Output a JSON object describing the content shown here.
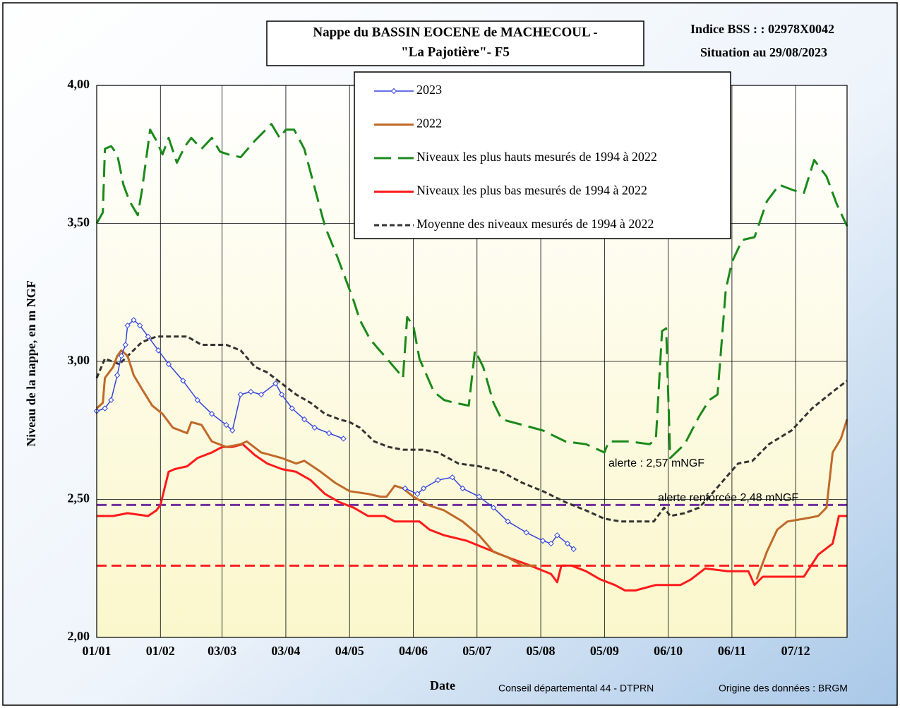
{
  "chart_data": {
    "type": "line",
    "title": [
      "Nappe du BASSIN EOCENE de MACHECOUL  -",
      "\"La Pajotière\"- F5"
    ],
    "info": [
      "Indice BSS : : 02978X0042",
      "Situation au 29/08/2023"
    ],
    "ylabel": "Niveau de la nappe, en m NGF",
    "xlabel": "Date",
    "footer": [
      "Conseil départemental 44 - DTPRN",
      "Origine des données : BRGM"
    ],
    "annotations": [
      "alerte : 2,57 mNGF",
      "alerte renforcée 2,48 mNGF"
    ],
    "xlim": [
      0,
      365
    ],
    "xticks": [
      {
        "value": 0,
        "label": "01/01"
      },
      {
        "value": 31,
        "label": "01/02"
      },
      {
        "value": 61,
        "label": "03/03"
      },
      {
        "value": 92,
        "label": "03/04"
      },
      {
        "value": 123,
        "label": "04/05"
      },
      {
        "value": 154,
        "label": "04/06"
      },
      {
        "value": 185,
        "label": "05/07"
      },
      {
        "value": 216,
        "label": "05/08"
      },
      {
        "value": 247,
        "label": "05/09"
      },
      {
        "value": 278,
        "label": "06/10"
      },
      {
        "value": 309,
        "label": "06/11"
      },
      {
        "value": 340,
        "label": "07/12"
      }
    ],
    "ylim": [
      2,
      4
    ],
    "yticks": [
      {
        "value": 2,
        "label": "2,00"
      },
      {
        "value": 2.5,
        "label": "2,50"
      },
      {
        "value": 3,
        "label": "3,00"
      },
      {
        "value": 3.5,
        "label": "3,50"
      },
      {
        "value": 4,
        "label": "4,00"
      }
    ],
    "grid": true,
    "reference_lines": [
      {
        "value": 2.48,
        "color": "#7030a0"
      },
      {
        "value": 2.26,
        "color": "#ff2020"
      }
    ],
    "series": [
      {
        "name": "2023",
        "color": "#3344dd",
        "style": "markers",
        "x": [
          0,
          4,
          7,
          10,
          12,
          14,
          15,
          18,
          21,
          25,
          30,
          35,
          42,
          49,
          56,
          63,
          66,
          70,
          75,
          80,
          87,
          90,
          95,
          101,
          106,
          113,
          120,
          125,
          150,
          156,
          159,
          166,
          173,
          178,
          186,
          193,
          200,
          209,
          217,
          221,
          224,
          229,
          232
        ],
        "values": [
          2.82,
          2.83,
          2.86,
          2.95,
          3.02,
          3.06,
          3.13,
          3.15,
          3.13,
          3.09,
          3.04,
          2.99,
          2.93,
          2.86,
          2.81,
          2.77,
          2.75,
          2.88,
          2.89,
          2.88,
          2.92,
          2.88,
          2.83,
          2.79,
          2.76,
          2.74,
          2.72,
          null,
          2.54,
          2.52,
          2.54,
          2.57,
          2.58,
          2.54,
          2.51,
          2.47,
          2.42,
          2.38,
          2.35,
          2.34,
          2.37,
          2.34,
          2.32
        ]
      },
      {
        "name": "2022",
        "color": "#c0692a",
        "style": "solid",
        "x": [
          0,
          3,
          4,
          8,
          10,
          12,
          15,
          18,
          22,
          27,
          32,
          37,
          44,
          46,
          51,
          56,
          63,
          70,
          73,
          80,
          90,
          97,
          101,
          109,
          116,
          123,
          132,
          138,
          141,
          145,
          149,
          154,
          161,
          169,
          178,
          186,
          193,
          200,
          207,
          214,
          260,
          321,
          326,
          331,
          336,
          344,
          351,
          355,
          358,
          362,
          365
        ],
        "values": [
          2.83,
          2.85,
          2.94,
          2.98,
          3.02,
          3.04,
          3.02,
          2.95,
          2.9,
          2.84,
          2.81,
          2.76,
          2.74,
          2.78,
          2.77,
          2.71,
          2.69,
          2.7,
          2.71,
          2.67,
          2.65,
          2.63,
          2.64,
          2.6,
          2.56,
          2.53,
          2.52,
          2.51,
          2.51,
          2.55,
          2.54,
          2.51,
          2.48,
          2.46,
          2.42,
          2.37,
          2.31,
          2.29,
          2.26,
          2.26,
          null,
          2.21,
          2.31,
          2.39,
          2.42,
          2.43,
          2.44,
          2.47,
          2.67,
          2.72,
          2.79
        ]
      },
      {
        "name": "Niveaux les plus hauts mesurés de 1994 à 2022",
        "color": "#1a8a1a",
        "style": "longdash",
        "x": [
          0,
          3,
          4,
          7,
          10,
          13,
          16,
          20,
          22,
          26,
          29,
          32,
          35,
          39,
          43,
          46,
          51,
          56,
          60,
          64,
          70,
          77,
          85,
          89,
          92,
          96,
          101,
          106,
          111,
          117,
          121,
          125,
          128,
          133,
          140,
          148,
          149,
          151,
          154,
          157,
          164,
          169,
          174,
          181,
          184,
          188,
          193,
          197,
          207,
          217,
          228,
          238,
          247,
          249,
          259,
          269,
          272,
          275,
          277,
          279,
          286,
          293,
          298,
          302,
          306,
          309,
          314,
          320,
          326,
          332,
          339,
          344,
          349,
          355,
          360,
          365
        ],
        "values": [
          3.5,
          3.54,
          3.77,
          3.78,
          3.75,
          3.64,
          3.58,
          3.53,
          3.62,
          3.84,
          3.8,
          3.75,
          3.81,
          3.72,
          3.78,
          3.81,
          3.77,
          3.81,
          3.76,
          3.75,
          3.74,
          3.8,
          3.86,
          3.81,
          3.84,
          3.84,
          3.77,
          3.63,
          3.49,
          3.38,
          3.3,
          3.22,
          3.15,
          3.08,
          3.02,
          2.95,
          2.94,
          3.16,
          3.13,
          3.01,
          2.89,
          2.86,
          2.85,
          2.84,
          3.04,
          2.98,
          2.85,
          2.79,
          2.77,
          2.75,
          2.71,
          2.7,
          2.67,
          2.71,
          2.71,
          2.7,
          2.72,
          3.11,
          3.12,
          2.65,
          2.7,
          2.8,
          2.86,
          2.88,
          3.26,
          3.36,
          3.44,
          3.45,
          3.58,
          3.64,
          3.62,
          3.61,
          3.73,
          3.67,
          3.57,
          3.49
        ]
      },
      {
        "name": "Niveaux les plus bas mesurés de 1994 à 2022",
        "color": "#ff1a1a",
        "style": "solid",
        "x": [
          0,
          8,
          15,
          25,
          29,
          31,
          35,
          38,
          44,
          49,
          56,
          61,
          66,
          71,
          77,
          83,
          90,
          97,
          104,
          111,
          118,
          125,
          132,
          140,
          145,
          154,
          157,
          162,
          169,
          180,
          190,
          200,
          211,
          221,
          224,
          226,
          231,
          238,
          245,
          252,
          257,
          262,
          272,
          284,
          289,
          296,
          307,
          317,
          320,
          324,
          334,
          344,
          351,
          358,
          361,
          365
        ],
        "values": [
          2.44,
          2.44,
          2.45,
          2.44,
          2.46,
          2.48,
          2.6,
          2.61,
          2.62,
          2.65,
          2.67,
          2.69,
          2.69,
          2.7,
          2.66,
          2.63,
          2.61,
          2.6,
          2.57,
          2.52,
          2.49,
          2.47,
          2.44,
          2.44,
          2.42,
          2.42,
          2.42,
          2.39,
          2.37,
          2.35,
          2.32,
          2.29,
          2.26,
          2.23,
          2.2,
          2.26,
          2.26,
          2.24,
          2.21,
          2.19,
          2.17,
          2.17,
          2.19,
          2.19,
          2.21,
          2.25,
          2.24,
          2.24,
          2.19,
          2.22,
          2.22,
          2.22,
          2.3,
          2.34,
          2.44,
          2.44
        ]
      },
      {
        "name": "Moyenne des niveaux mesurés de 1994 à 2022",
        "color": "#333333",
        "style": "shortdash",
        "x": [
          0,
          4,
          11,
          22,
          29,
          35,
          44,
          51,
          63,
          70,
          77,
          83,
          90,
          97,
          104,
          111,
          118,
          123,
          128,
          135,
          142,
          149,
          159,
          166,
          176,
          186,
          197,
          207,
          217,
          228,
          238,
          247,
          255,
          262,
          271,
          276,
          279,
          286,
          293,
          298,
          305,
          312,
          319,
          327,
          338,
          348,
          358,
          365
        ],
        "values": [
          2.94,
          3.01,
          2.99,
          3.07,
          3.09,
          3.09,
          3.09,
          3.06,
          3.06,
          3.04,
          2.98,
          2.96,
          2.92,
          2.88,
          2.85,
          2.81,
          2.79,
          2.78,
          2.76,
          2.71,
          2.69,
          2.68,
          2.68,
          2.67,
          2.63,
          2.62,
          2.6,
          2.56,
          2.53,
          2.49,
          2.46,
          2.43,
          2.42,
          2.42,
          2.42,
          2.47,
          2.44,
          2.45,
          2.47,
          2.51,
          2.57,
          2.63,
          2.64,
          2.7,
          2.75,
          2.83,
          2.89,
          2.93
        ]
      }
    ]
  }
}
